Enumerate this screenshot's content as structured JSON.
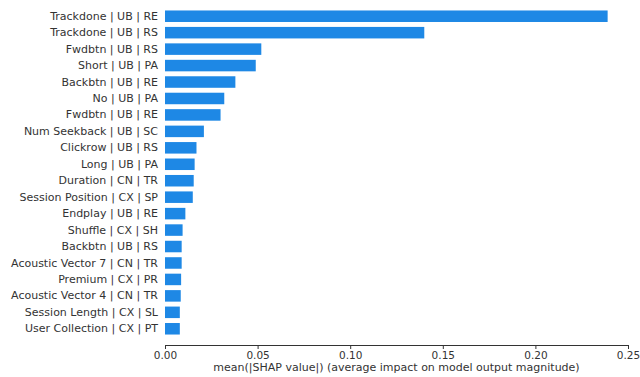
{
  "chart_data": {
    "type": "bar",
    "orientation": "horizontal",
    "x_label": "mean(|SHAP value|) (average impact on model output magnitude)",
    "categories": [
      "Trackdone | UB | RE",
      "Trackdone | UB | RS",
      "Fwdbtn | UB | RS",
      "Short | UB | PA",
      "Backbtn | UB | RE",
      "No | UB | PA",
      "Fwdbtn | UB | RE",
      "Num Seekback | UB | SC",
      "Clickrow | UB | RS",
      "Long | UB | PA",
      "Duration | CN | TR",
      "Session Position | CX | SP",
      "Endplay | UB | RE",
      "Shuffle | CX | SH",
      "Backbtn | UB | RS",
      "Acoustic Vector 7 | CN | TR",
      "Premium | CX | PR",
      "Acoustic Vector 4 | CN | TR",
      "Session Length | CX | SL",
      "User Collection | CX | PT"
    ],
    "values": [
      0.239,
      0.14,
      0.052,
      0.049,
      0.038,
      0.032,
      0.03,
      0.021,
      0.017,
      0.016,
      0.0155,
      0.015,
      0.011,
      0.0095,
      0.009,
      0.009,
      0.0087,
      0.0085,
      0.008,
      0.008
    ],
    "color": "#1e88e5",
    "xlim": [
      0,
      0.25
    ],
    "xticks": [
      {
        "value": 0,
        "label": "0.00"
      },
      0.05,
      {
        "value": 0.1,
        "label": "0.10"
      },
      0.15,
      {
        "value": 0.2,
        "label": "0.20"
      },
      0.25
    ],
    "grid": false
  }
}
